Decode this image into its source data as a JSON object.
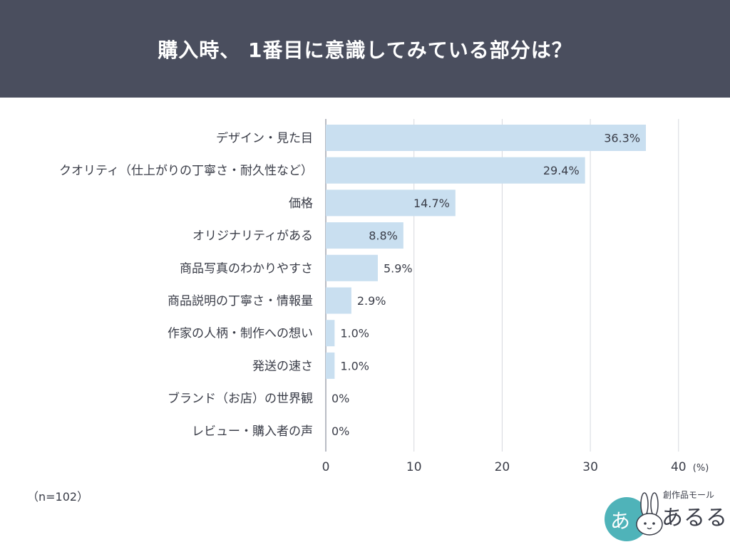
{
  "header": {
    "title": "購入時、 1番目に意識してみている部分は？"
  },
  "chart_data": {
    "type": "bar",
    "orientation": "horizontal",
    "categories": [
      "デザイン・見た目",
      "クオリティ（仕上がりの丁寧さ・耐久性など）",
      "価格",
      "オリジナリティがある",
      "商品写真のわかりやすさ",
      "商品説明の丁寧さ・情報量",
      "作家の人柄・制作への想い",
      "発送の速さ",
      "ブランド（お店）の世界観",
      "レビュー・購入者の声"
    ],
    "values": [
      36.3,
      29.4,
      14.7,
      8.8,
      5.9,
      2.9,
      1.0,
      1.0,
      0,
      0
    ],
    "value_labels": [
      "36.3%",
      "29.4%",
      "14.7%",
      "8.8%",
      "5.9%",
      "2.9%",
      "1.0%",
      "1.0%",
      "0%",
      "0%"
    ],
    "xlim": [
      0,
      40
    ],
    "xticks": [
      "0",
      "10",
      "20",
      "30",
      "40"
    ],
    "x_unit": "(%)",
    "grid": true,
    "bar_color": "#c9dff0"
  },
  "sample_note": "（n=102）",
  "logo": {
    "circle_text": "あ",
    "tagline": "創作品モール",
    "name": "あるる",
    "accent_color": "#4fb3b9"
  }
}
